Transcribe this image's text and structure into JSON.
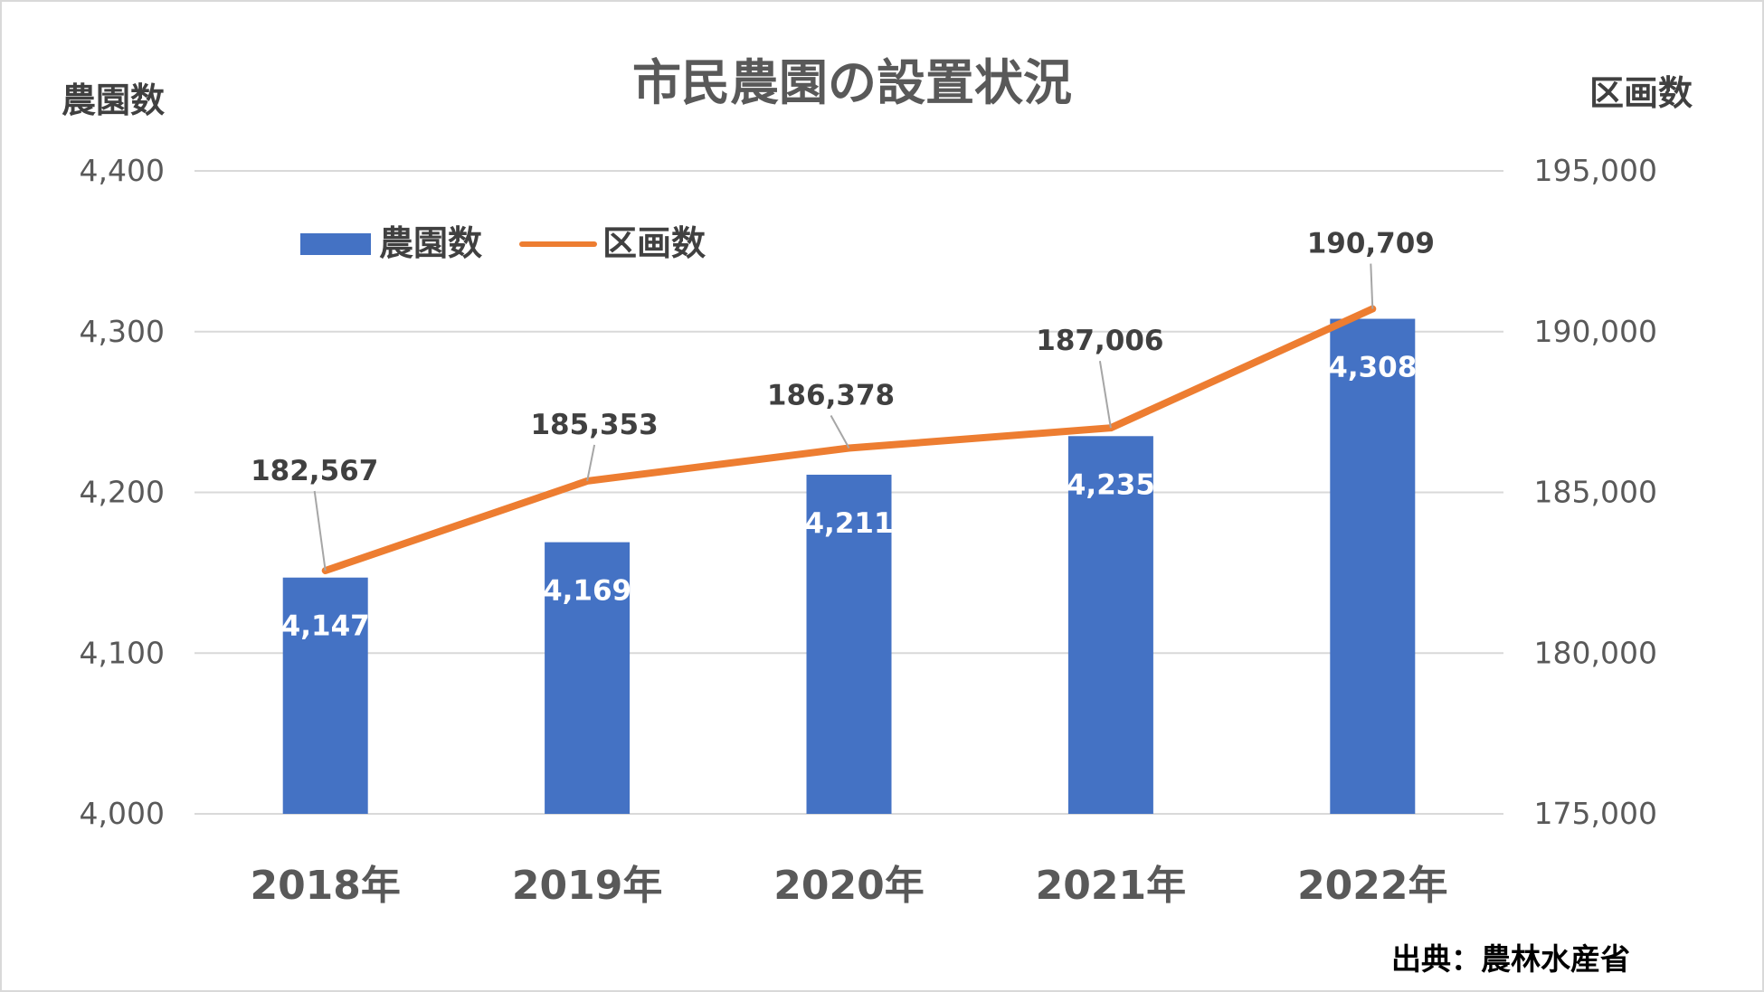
{
  "chart_data": {
    "type": "bar",
    "title": "市民農園の設置状況",
    "categories": [
      "2018年",
      "2019年",
      "2020年",
      "2021年",
      "2022年"
    ],
    "series": [
      {
        "name": "農園数",
        "type": "bar",
        "axis": "left",
        "color": "#4472C4",
        "values": [
          4147,
          4169,
          4211,
          4235,
          4308
        ],
        "labels": [
          "4,147",
          "4,169",
          "4,211",
          "4,235",
          "4,308"
        ]
      },
      {
        "name": "区画数",
        "type": "line",
        "axis": "right",
        "color": "#ED7D31",
        "values": [
          182567,
          185353,
          186378,
          187006,
          190709
        ],
        "labels": [
          "182,567",
          "185,353",
          "186,378",
          "187,006",
          "190,709"
        ]
      }
    ],
    "ylabel": "農園数",
    "ylim": [
      4000,
      4400
    ],
    "yticks": [
      "4,000",
      "4,100",
      "4,200",
      "4,300",
      "4,400"
    ],
    "y2label": "区画数",
    "y2lim": [
      175000,
      195000
    ],
    "y2ticks": [
      "175,000",
      "180,000",
      "185,000",
      "190,000",
      "195,000"
    ],
    "legend_position": "top-left",
    "grid": true
  },
  "source_note": "出典：農林水産省"
}
